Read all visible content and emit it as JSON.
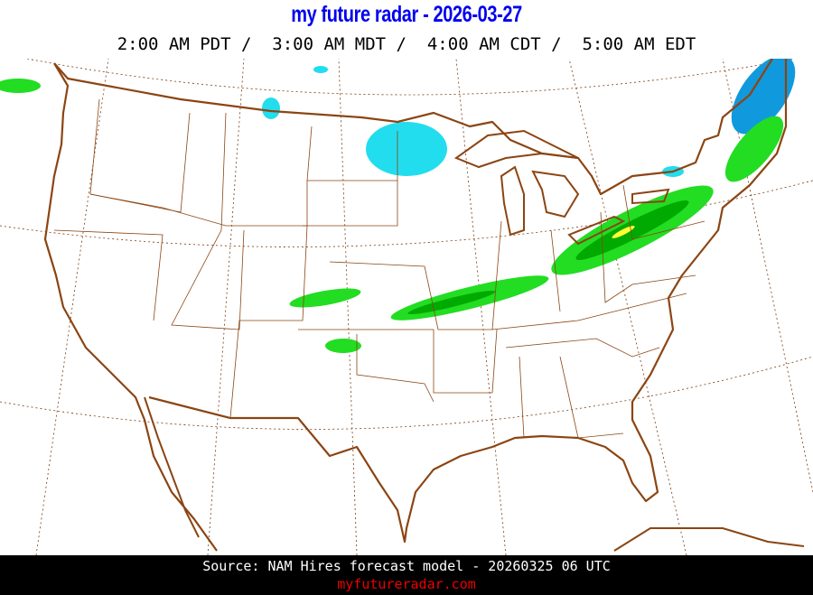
{
  "header": {
    "title": "my future radar - 2026-03-27",
    "times": "2:00 AM PDT /  3:00 AM MDT /  4:00 AM CDT /  5:00 AM EDT"
  },
  "map": {
    "region": "Continental United States",
    "colors": {
      "border": "#8b4513",
      "graticule": "#7a3a10",
      "light_rain": "#22dd22",
      "moderate_rain": "#00aa00",
      "heavy_rain": "#ffff33",
      "snow": "#22ddee",
      "heavy_snow": "#1199dd"
    }
  },
  "footer": {
    "source": "Source: NAM Hires forecast model - 20260325 06 UTC",
    "site": "myfutureradar.com"
  }
}
